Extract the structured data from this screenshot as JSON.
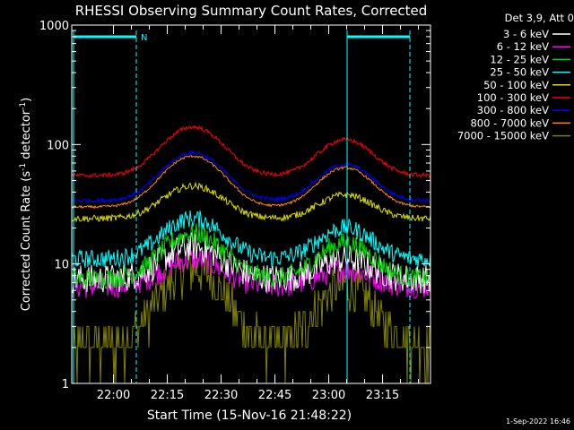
{
  "chart_data": {
    "type": "line",
    "title": "RHESSI Observing Summary Count Rates, Corrected",
    "xlabel": "Start Time (15-Nov-16 21:48:22)",
    "ylabel_pre": "Corrected Count Rate (s",
    "ylabel_mid": " detector",
    "ylabel_post": ")",
    "ylabel_sup": "-1",
    "y_scale": "log",
    "ylim": [
      1,
      1000
    ],
    "y_ticks": [
      1,
      10,
      100,
      1000
    ],
    "y_tick_labels": [
      "1",
      "10",
      "100",
      "1000"
    ],
    "x_ticks": [
      "22:00",
      "22:15",
      "22:30",
      "22:45",
      "23:00",
      "23:15"
    ],
    "grid": false,
    "legend_title": "Det 3,9, Att 0",
    "legend_position": "top-right",
    "series": [
      {
        "name": "3 - 6 keV",
        "color": "#ffffff",
        "level": 7.5,
        "peak1": 14,
        "peak2": 11,
        "noise": 0.35
      },
      {
        "name": "6 - 12 keV",
        "color": "#ff00ff",
        "level": 6.5,
        "peak1": 11,
        "peak2": 9,
        "noise": 0.3
      },
      {
        "name": "12 - 25 keV",
        "color": "#00dd00",
        "level": 7.5,
        "peak1": 18,
        "peak2": 15,
        "noise": 0.25
      },
      {
        "name": "25 - 50 keV",
        "color": "#00ffff",
        "level": 11,
        "peak1": 24,
        "peak2": 20,
        "noise": 0.22
      },
      {
        "name": "50 - 100 keV",
        "color": "#dddd00",
        "level": 24,
        "peak1": 45,
        "peak2": 38,
        "noise": 0.08
      },
      {
        "name": "100 - 300 keV",
        "color": "#ff0000",
        "level": 55,
        "peak1": 140,
        "peak2": 110,
        "noise": 0.05
      },
      {
        "name": "300 - 800 keV",
        "color": "#0000ff",
        "level": 34,
        "peak1": 85,
        "peak2": 68,
        "noise": 0.05
      },
      {
        "name": "800 - 7000 keV",
        "color": "#ff8800",
        "level": 30,
        "peak1": 80,
        "peak2": 64,
        "noise": 0.03
      },
      {
        "name": "7000 - 15000 keV",
        "color": "#808000",
        "level": 2.0,
        "peak1": 9,
        "peak2": 6.5,
        "noise": 0.55
      }
    ],
    "night_marker": "N",
    "timestamp": "1-Sep-2022 16:46"
  }
}
